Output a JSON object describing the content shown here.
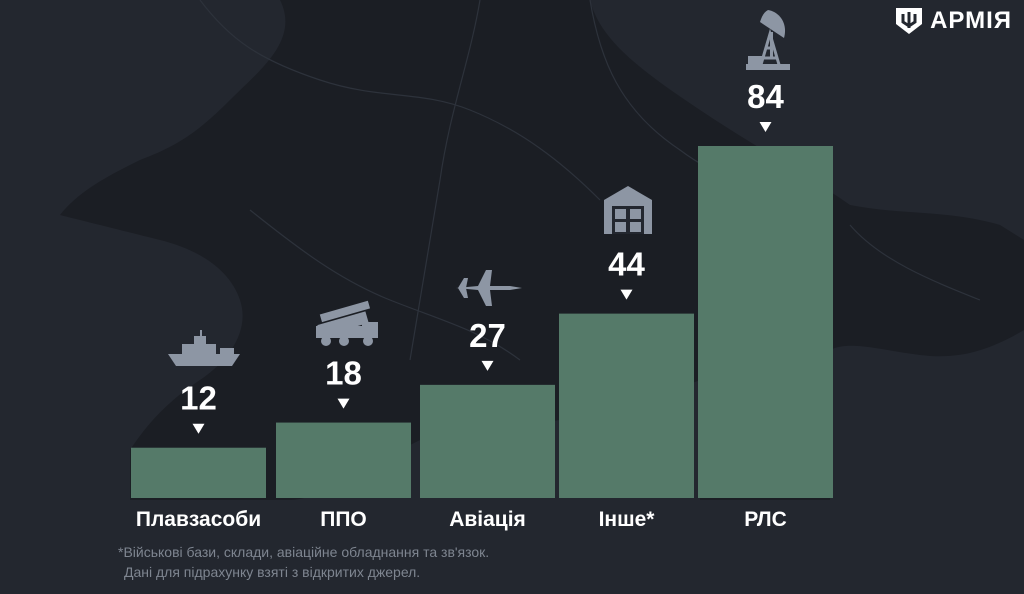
{
  "brand": {
    "name": "АРМІЯ"
  },
  "colors": {
    "background": "#23272f",
    "bar": "#557a69",
    "icon": "#8d96a4",
    "text": "#ffffff",
    "note": "#7e8590"
  },
  "chart_data": {
    "type": "bar",
    "title": "",
    "xlabel": "",
    "ylabel": "",
    "ylim": [
      0,
      84
    ],
    "grid": false,
    "categories": [
      "Плавзасоби",
      "ППО",
      "Авіація",
      "Інше*",
      "РЛС"
    ],
    "values": [
      12,
      18,
      27,
      44,
      84
    ],
    "icons": [
      "ship-icon",
      "air-defense-launcher-icon",
      "fighter-jet-icon",
      "warehouse-icon",
      "radar-icon"
    ]
  },
  "footnote": {
    "line1": "*Військові бази, склади, авіаційне обладнання та зв'язок.",
    "line2": "Дані для підрахунку взяті з відкритих джерел."
  }
}
